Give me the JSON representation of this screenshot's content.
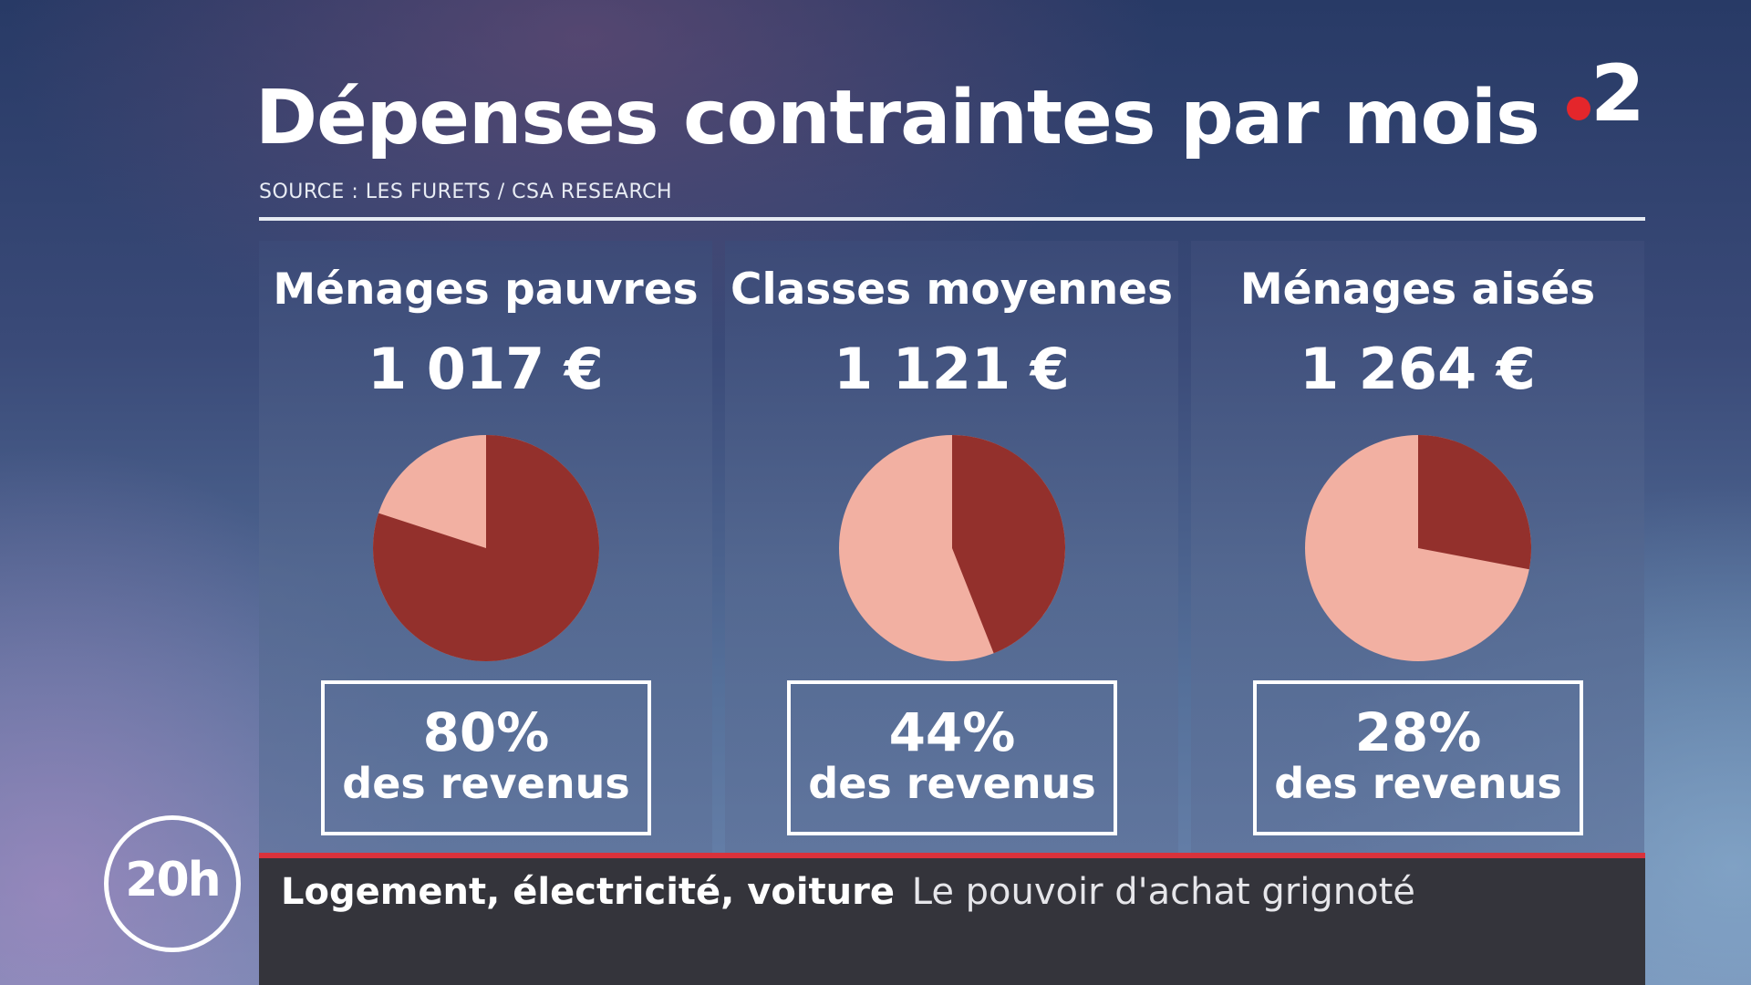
{
  "title": "Dépenses contraintes par mois",
  "source": "SOURCE : LES FURETS / CSA RESEARCH",
  "channel_logo": {
    "number": "2",
    "dot_color": "#e4262b"
  },
  "chart_data": {
    "type": "pie",
    "colors": {
      "share": "#93302c",
      "rest": "#f2b0a2"
    },
    "series": [
      {
        "name": "Ménages pauvres",
        "amount": "1 017 €",
        "share_percent": 80,
        "share_label": "80%",
        "caption": "des revenus"
      },
      {
        "name": "Classes moyennes",
        "amount": "1 121 €",
        "share_percent": 44,
        "share_label": "44%",
        "caption": "des revenus"
      },
      {
        "name": "Ménages aisés",
        "amount": "1 264 €",
        "share_percent": 28,
        "share_label": "28%",
        "caption": "des revenus"
      }
    ]
  },
  "lower_third": {
    "headline": "Logement, électricité, voiture",
    "subtitle": "Le pouvoir d'achat grignoté",
    "accent_color": "#d9323b"
  },
  "show_badge": "20h"
}
